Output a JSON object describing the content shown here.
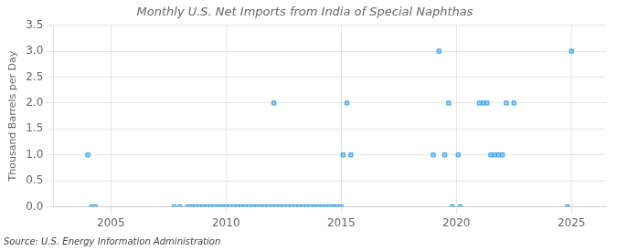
{
  "chart_data": {
    "type": "scatter",
    "title": "Monthly U.S. Net Imports from India of Special Naphthas",
    "ylabel": "Thousand Barrels per Day",
    "annotations": [
      "Source: U.S. Energy Information Administration"
    ],
    "marker": "square",
    "grid": true,
    "xlim": [
      2002.5,
      2026.5
    ],
    "xticks": [
      2005,
      2010,
      2015,
      2020,
      2025
    ],
    "ylim": [
      0.0,
      3.5
    ],
    "yticks": [
      {
        "value": 0.0,
        "label": "0.0"
      },
      0.5,
      {
        "value": 1.0,
        "label": "1.0"
      },
      1.5,
      {
        "value": 2.0,
        "label": "2.0"
      },
      2.5,
      {
        "value": 3.0,
        "label": "3.0"
      },
      3.5
    ],
    "x": [
      2004.0,
      2004.17,
      2004.33,
      2007.75,
      2008.0,
      2008.33,
      2008.5,
      2008.67,
      2008.83,
      2009.0,
      2009.17,
      2009.33,
      2009.5,
      2009.67,
      2009.83,
      2010.0,
      2010.17,
      2010.33,
      2010.5,
      2010.67,
      2010.83,
      2011.0,
      2011.17,
      2011.33,
      2011.5,
      2011.67,
      2011.83,
      2012.0,
      2012.08,
      2012.17,
      2012.33,
      2012.5,
      2012.67,
      2012.83,
      2013.0,
      2013.17,
      2013.33,
      2013.5,
      2013.67,
      2013.83,
      2014.0,
      2014.17,
      2014.33,
      2014.5,
      2014.67,
      2014.83,
      2015.0,
      2015.08,
      2015.25,
      2015.42,
      2019.0,
      2019.25,
      2019.5,
      2019.67,
      2019.83,
      2020.08,
      2020.17,
      2021.0,
      2021.17,
      2021.33,
      2021.5,
      2021.67,
      2021.83,
      2022.0,
      2022.17,
      2022.5,
      2024.83,
      2025.0
    ],
    "values": [
      1.0,
      0.0,
      0.0,
      0.0,
      0.0,
      0.0,
      0.0,
      0.0,
      0.0,
      0.0,
      0.0,
      0.0,
      0.0,
      0.0,
      0.0,
      0.0,
      0.0,
      0.0,
      0.0,
      0.0,
      0.0,
      0.0,
      0.0,
      0.0,
      0.0,
      0.0,
      0.0,
      0.0,
      2.0,
      0.0,
      0.0,
      0.0,
      0.0,
      0.0,
      0.0,
      0.0,
      0.0,
      0.0,
      0.0,
      0.0,
      0.0,
      0.0,
      0.0,
      0.0,
      0.0,
      0.0,
      0.0,
      1.0,
      2.0,
      1.0,
      1.0,
      3.0,
      1.0,
      2.0,
      0.0,
      1.0,
      0.0,
      2.0,
      2.0,
      2.0,
      1.0,
      1.0,
      1.0,
      1.0,
      2.0,
      2.0,
      0.0,
      3.0
    ]
  }
}
